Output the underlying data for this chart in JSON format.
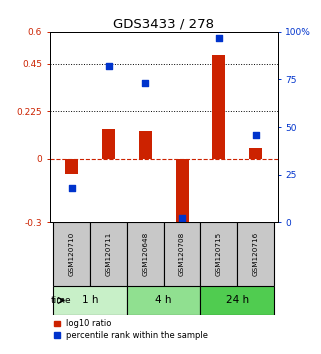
{
  "title": "GDS3433 / 278",
  "samples": [
    "GSM120710",
    "GSM120711",
    "GSM120648",
    "GSM120708",
    "GSM120715",
    "GSM120716"
  ],
  "log10_ratio": [
    -0.07,
    0.14,
    0.13,
    -0.32,
    0.49,
    0.05
  ],
  "percentile_rank": [
    18,
    82,
    73,
    2,
    97,
    46
  ],
  "time_groups": [
    {
      "label": "1 h",
      "start": 0,
      "end": 1,
      "color": "#c8f0c8"
    },
    {
      "label": "4 h",
      "start": 2,
      "end": 3,
      "color": "#90e090"
    },
    {
      "label": "24 h",
      "start": 4,
      "end": 5,
      "color": "#50cc50"
    }
  ],
  "ylim_left": [
    -0.3,
    0.6
  ],
  "ylim_right": [
    0,
    100
  ],
  "yticks_left": [
    -0.3,
    0,
    0.225,
    0.45,
    0.6
  ],
  "ytick_labels_left": [
    "-0.3",
    "0",
    "0.225",
    "0.45",
    "0.6"
  ],
  "yticks_right": [
    0,
    25,
    50,
    75,
    100
  ],
  "ytick_labels_right": [
    "0",
    "25",
    "50",
    "75",
    "100%"
  ],
  "dotted_lines": [
    0.225,
    0.45
  ],
  "bar_color_red": "#cc2200",
  "bar_color_blue": "#0033cc",
  "dashed_line_color": "#cc2200",
  "bg_color": "#ffffff",
  "sample_bg_color": "#c8c8c8",
  "bar_width": 0.35,
  "legend_red": "log10 ratio",
  "legend_blue": "percentile rank within the sample"
}
